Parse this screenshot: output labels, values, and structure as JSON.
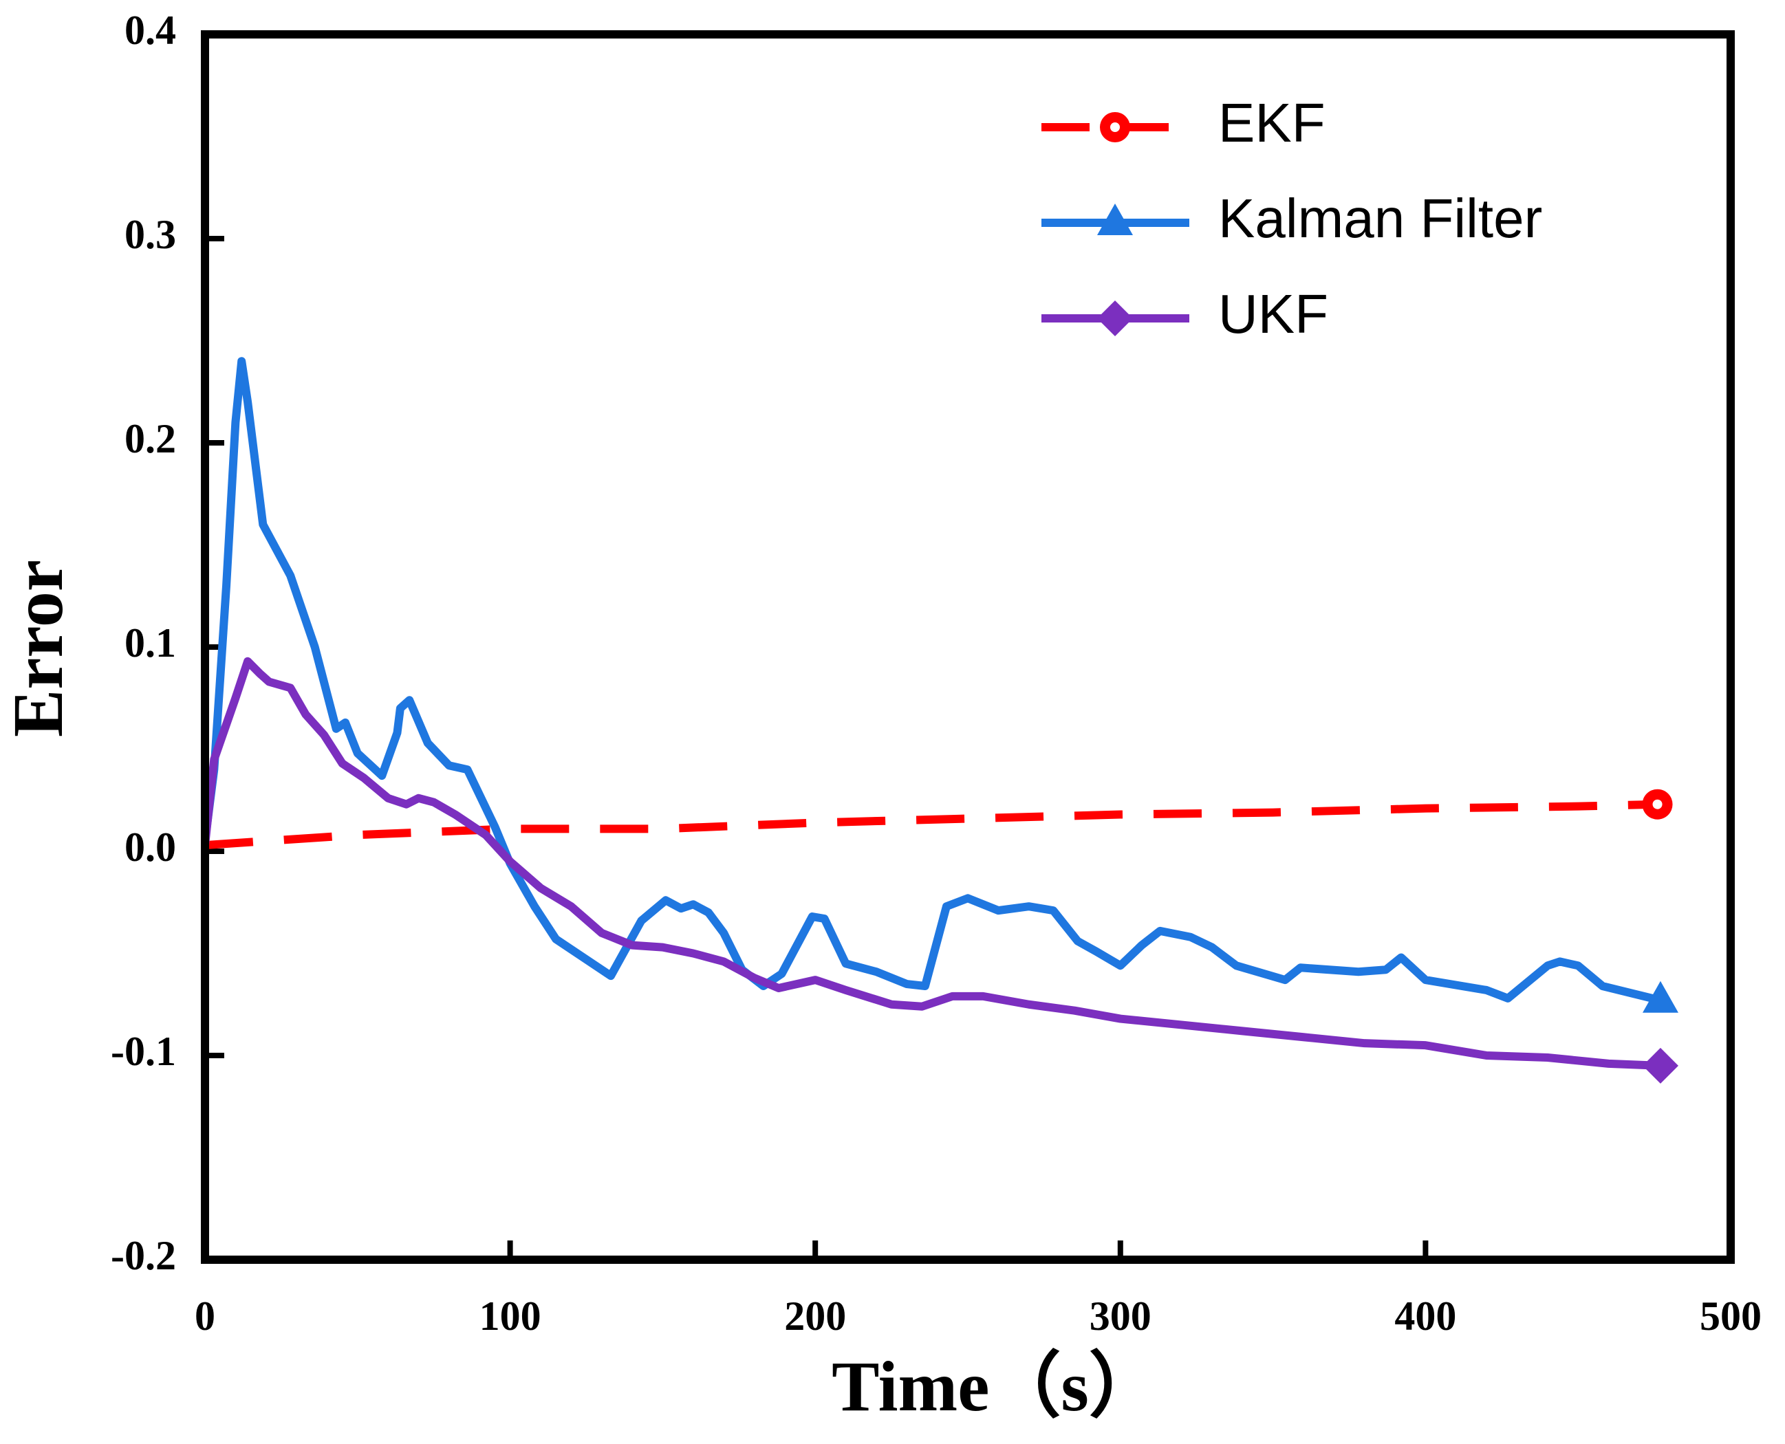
{
  "chart_data": {
    "type": "line",
    "x_label": "Time（s）",
    "y_label": "Error",
    "xlim": [
      0,
      500
    ],
    "xticks": [
      0,
      100,
      200,
      300,
      400,
      500
    ],
    "ylim": [
      -0.2,
      0.4
    ],
    "yticks": [
      {
        "value": -0.2,
        "label": "-0.2"
      },
      -0.1,
      {
        "value": 0,
        "label": "0.0"
      },
      0.1,
      0.2,
      0.3,
      0.4
    ],
    "legend": "upper right",
    "series": [
      {
        "name": "EKF",
        "color": "#ff0000",
        "dash": true,
        "marker": "circle",
        "x": [
          0,
          50,
          100,
          150,
          200,
          250,
          300,
          350,
          400,
          450,
          476
        ],
        "values": [
          0.003,
          0.008,
          0.011,
          0.011,
          0.014,
          0.016,
          0.018,
          0.019,
          0.021,
          0.022,
          0.023
        ]
      },
      {
        "name": "Kalman Filter",
        "color": "#1f77e0",
        "dash": false,
        "marker": "triangle",
        "x": [
          0,
          3,
          7,
          10,
          12,
          14,
          19,
          28,
          36,
          43,
          46,
          50,
          58,
          63,
          64,
          67,
          73,
          80,
          86,
          95,
          100,
          108,
          115,
          133,
          143,
          151,
          156,
          160,
          165,
          170,
          176,
          183,
          189,
          199,
          203,
          210,
          220,
          230,
          236,
          243,
          250,
          260,
          270,
          278,
          286,
          292,
          300,
          307,
          313,
          323,
          330,
          338,
          354,
          359,
          378,
          387,
          392,
          400,
          420,
          427,
          440,
          444,
          450,
          458,
          477
        ],
        "values": [
          0.005,
          0.04,
          0.13,
          0.21,
          0.24,
          0.22,
          0.16,
          0.135,
          0.1,
          0.06,
          0.063,
          0.048,
          0.037,
          0.058,
          0.07,
          0.074,
          0.053,
          0.042,
          0.04,
          0.012,
          -0.006,
          -0.027,
          -0.043,
          -0.061,
          -0.034,
          -0.024,
          -0.028,
          -0.026,
          -0.03,
          -0.04,
          -0.058,
          -0.066,
          -0.06,
          -0.032,
          -0.033,
          -0.055,
          -0.059,
          -0.065,
          -0.066,
          -0.027,
          -0.023,
          -0.029,
          -0.027,
          -0.029,
          -0.044,
          -0.049,
          -0.056,
          -0.046,
          -0.039,
          -0.042,
          -0.047,
          -0.056,
          -0.063,
          -0.057,
          -0.059,
          -0.058,
          -0.052,
          -0.063,
          -0.068,
          -0.072,
          -0.056,
          -0.054,
          -0.056,
          -0.066,
          -0.073
        ]
      },
      {
        "name": "UKF",
        "color": "#7b2fbf",
        "dash": false,
        "marker": "diamond",
        "x": [
          0,
          3,
          10,
          14,
          18,
          21,
          28,
          33,
          39,
          45,
          52,
          60,
          66,
          70,
          75,
          82,
          92,
          100,
          110,
          120,
          130,
          140,
          150,
          160,
          170,
          180,
          188,
          200,
          210,
          225,
          235,
          245,
          255,
          270,
          285,
          300,
          320,
          340,
          360,
          380,
          400,
          420,
          440,
          460,
          477
        ],
        "values": [
          0.003,
          0.045,
          0.075,
          0.093,
          0.087,
          0.083,
          0.08,
          0.067,
          0.057,
          0.043,
          0.036,
          0.026,
          0.023,
          0.026,
          0.024,
          0.018,
          0.008,
          -0.005,
          -0.018,
          -0.027,
          -0.04,
          -0.046,
          -0.047,
          -0.05,
          -0.054,
          -0.062,
          -0.067,
          -0.063,
          -0.068,
          -0.075,
          -0.076,
          -0.071,
          -0.071,
          -0.075,
          -0.078,
          -0.082,
          -0.085,
          -0.088,
          -0.091,
          -0.094,
          -0.095,
          -0.1,
          -0.101,
          -0.104,
          -0.105
        ]
      }
    ]
  }
}
